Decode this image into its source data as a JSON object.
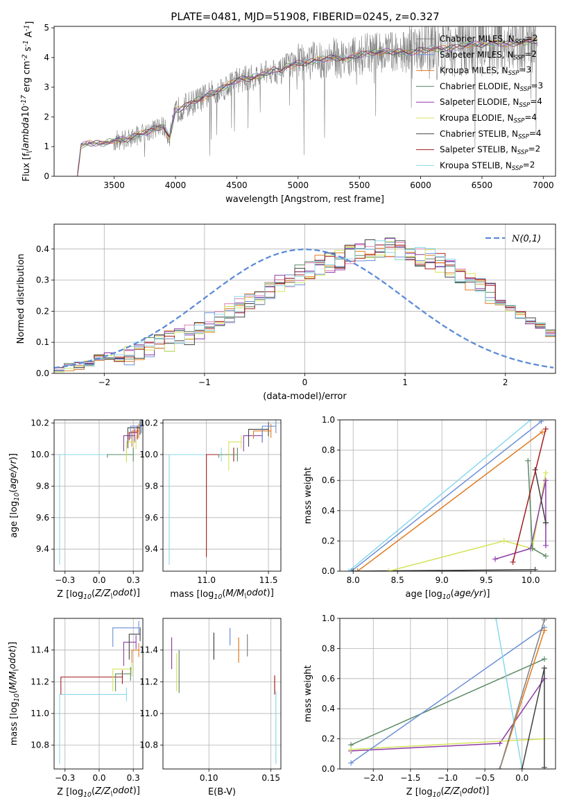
{
  "figure_title": "PLATE=0481, MJD=51908, FIBERID=0245, z=0.327",
  "series_styles": [
    {
      "name": "Chabrier MILES, N$_{SSP}$=2",
      "color": "#808080"
    },
    {
      "name": "Salpeter MILES, N$_{SSP}$=2",
      "color": "#6a8fd8"
    },
    {
      "name": "Kroupa MILES, N$_{SSP}$=3",
      "color": "#e07a1f"
    },
    {
      "name": "Chabrier ELODIE, N$_{SSP}$=3",
      "color": "#5a8a64"
    },
    {
      "name": "Salpeter ELODIE, N$_{SSP}$=4",
      "color": "#8e3aa8"
    },
    {
      "name": "Kroupa ELODIE, N$_{SSP}$=4",
      "color": "#d4e35a"
    },
    {
      "name": "Chabrier STELIB, N$_{SSP}$=4",
      "color": "#404040"
    },
    {
      "name": "Salpeter STELIB, N$_{SSP}$=2",
      "color": "#a31d1d"
    },
    {
      "name": "Kroupa STELIB, N$_{SSP}$=2",
      "color": "#88d8ec"
    }
  ],
  "chart_data": [
    {
      "id": "spectrum",
      "type": "line",
      "xlabel": "wavelength [Angstrom, rest frame]",
      "ylabel": "Flux [f$_\\lambda$10$^{-17}$ erg cm$^{-2}$ s$^{-1}$ A$^{-1}$]",
      "xlim": [
        3010,
        7100
      ],
      "ylim": [
        0,
        5.05
      ],
      "xticks": [
        3500,
        4000,
        4500,
        5000,
        5500,
        6000,
        6500,
        7000
      ],
      "yticks": [
        0,
        1,
        2,
        3,
        4,
        5
      ],
      "grid": false,
      "legend_position": "top-right",
      "legend": [
        "Chabrier MILES, N$_{SSP}$=2",
        "Salpeter MILES, N$_{SSP}$=2",
        "Kroupa MILES, N$_{SSP}$=3",
        "Chabrier ELODIE, N$_{SSP}$=3",
        "Salpeter ELODIE, N$_{SSP}$=4",
        "Kroupa ELODIE, N$_{SSP}$=4",
        "Chabrier STELIB, N$_{SSP}$=4",
        "Salpeter STELIB, N$_{SSP}$=2",
        "Kroupa STELIB, N$_{SSP}$=2"
      ],
      "data_series": {
        "name": "",
        "color": "#808080",
        "x_range": [
          3200,
          6950
        ]
      },
      "model_x": [
        3200,
        3230,
        3300,
        3400,
        3500,
        3600,
        3700,
        3800,
        3900,
        3950,
        4000,
        4100,
        4200,
        4300,
        4400,
        4500,
        4600,
        4700,
        4800,
        4860,
        4900,
        5000,
        5100,
        5200,
        5300,
        5400,
        5500,
        5600,
        5700,
        5800,
        5900,
        6000,
        6100,
        6200,
        6300,
        6400,
        6500,
        6600,
        6700,
        6800,
        6900,
        6950
      ],
      "model_y": [
        0.0,
        1.05,
        1.12,
        1.1,
        1.2,
        1.25,
        1.4,
        1.55,
        1.7,
        1.3,
        2.2,
        2.4,
        2.6,
        2.8,
        3.0,
        3.25,
        3.3,
        3.4,
        3.6,
        3.5,
        3.7,
        3.8,
        3.85,
        3.95,
        4.0,
        3.95,
        4.1,
        4.15,
        4.2,
        4.2,
        4.15,
        4.25,
        4.3,
        4.3,
        4.35,
        4.45,
        4.45,
        4.5,
        4.45,
        4.5,
        4.55,
        4.55
      ]
    },
    {
      "id": "residuals",
      "type": "line",
      "xlabel": "(data-model)/error",
      "ylabel": "Normed distribution",
      "xlim": [
        -2.5,
        2.5
      ],
      "ylim": [
        0,
        0.48
      ],
      "xticks": [
        -2,
        -1,
        0,
        1,
        2
      ],
      "yticks": [
        0.0,
        0.1,
        0.2,
        0.3,
        0.4
      ],
      "grid": true,
      "legend_position": "top-right",
      "legend": [
        "$\\mathcal{N}(0,1)$"
      ],
      "normal_curve": {
        "name": "$\\mathcal{N}(0,1)$",
        "color": "#5b8bd6",
        "mean": 0,
        "sigma": 1
      },
      "bin_edges_start": -2.5,
      "bin_width": 0.1,
      "histogram_shape": [
        0.015,
        0.02,
        0.025,
        0.035,
        0.05,
        0.055,
        0.05,
        0.06,
        0.07,
        0.08,
        0.09,
        0.1,
        0.11,
        0.12,
        0.14,
        0.16,
        0.17,
        0.19,
        0.21,
        0.23,
        0.25,
        0.26,
        0.28,
        0.3,
        0.31,
        0.33,
        0.34,
        0.35,
        0.36,
        0.37,
        0.38,
        0.39,
        0.4,
        0.4,
        0.39,
        0.38,
        0.37,
        0.36,
        0.35,
        0.33,
        0.31,
        0.29,
        0.27,
        0.25,
        0.23,
        0.21,
        0.19,
        0.17,
        0.15,
        0.13
      ]
    },
    {
      "id": "age-vs-metallicity",
      "type": "line",
      "xlabel": "Z [log$_{10}$($Z/Z_\\odot$)]",
      "ylabel": "age  [log$_{10}$($age/yr$)]",
      "xlim": [
        -0.33,
        0.32
      ],
      "ylim": [
        9.26,
        10.22
      ],
      "xticks": [
        -0.25,
        0.0,
        0.25
      ],
      "yticks": [
        9.4,
        9.6,
        9.8,
        10.0,
        10.2
      ],
      "grid": true,
      "steps": [
        {
          "series": 8,
          "x": [
            -0.29,
            0.2
          ],
          "y": [
            9.3,
            10.0
          ]
        },
        {
          "series": 3,
          "x": [
            0.06,
            0.25
          ],
          "y": [
            9.98,
            10.0
          ]
        },
        {
          "series": 2,
          "x": [
            0.24,
            0.29
          ],
          "y": [
            10.05,
            10.15
          ]
        },
        {
          "series": 7,
          "x": [
            0.22,
            0.28
          ],
          "y": [
            10.09,
            10.14
          ]
        },
        {
          "series": 4,
          "x": [
            0.18,
            0.26
          ],
          "y": [
            10.02,
            10.12
          ]
        },
        {
          "series": 5,
          "x": [
            0.2,
            0.27
          ],
          "y": [
            9.95,
            10.08
          ]
        },
        {
          "series": 6,
          "x": [
            0.21,
            0.3
          ],
          "y": [
            10.04,
            10.17
          ]
        },
        {
          "series": 1,
          "x": [
            0.23,
            0.31
          ],
          "y": [
            10.1,
            10.18
          ]
        }
      ]
    },
    {
      "id": "age-vs-mass",
      "type": "line",
      "xlabel": "mass [log$_{10}$($M/M_\\odot$)]",
      "ylabel": "",
      "xlim": [
        10.65,
        11.6
      ],
      "ylim": [
        9.26,
        10.22
      ],
      "xticks": [
        11.0,
        11.5
      ],
      "yticks": [
        9.4,
        9.6,
        9.8,
        10.0,
        10.2
      ],
      "grid": true,
      "steps": [
        {
          "series": 8,
          "x": [
            10.7,
            11.12
          ],
          "y": [
            9.3,
            10.0
          ]
        },
        {
          "series": 7,
          "x": [
            11.0,
            11.22
          ],
          "y": [
            9.35,
            10.0
          ]
        },
        {
          "series": 3,
          "x": [
            11.1,
            11.25
          ],
          "y": [
            9.98,
            10.0
          ]
        },
        {
          "series": 5,
          "x": [
            11.18,
            11.28
          ],
          "y": [
            9.9,
            10.08
          ]
        },
        {
          "series": 4,
          "x": [
            11.3,
            11.45
          ],
          "y": [
            10.02,
            10.12
          ]
        },
        {
          "series": 6,
          "x": [
            11.34,
            11.5
          ],
          "y": [
            10.05,
            10.16
          ]
        },
        {
          "series": 2,
          "x": [
            11.38,
            11.52
          ],
          "y": [
            10.1,
            10.15
          ]
        },
        {
          "series": 1,
          "x": [
            11.45,
            11.56
          ],
          "y": [
            10.08,
            10.18
          ]
        }
      ]
    },
    {
      "id": "mass-weight-vs-age",
      "type": "line",
      "xlabel": "age  [log$_{10}$($age/yr$)]",
      "ylabel": "mass weight",
      "xlim": [
        7.85,
        10.28
      ],
      "ylim": [
        0.0,
        1.0
      ],
      "xticks": [
        8.0,
        8.5,
        9.0,
        9.5,
        10.0
      ],
      "yticks": [
        0.0,
        0.2,
        0.4,
        0.6,
        0.8,
        1.0
      ],
      "grid": true,
      "series": [
        {
          "series": 8,
          "x": [
            7.95,
            10.0
          ],
          "y": [
            0.0,
            1.0
          ]
        },
        {
          "series": 1,
          "x": [
            7.98,
            10.12
          ],
          "y": [
            0.0,
            0.99
          ]
        },
        {
          "series": 2,
          "x": [
            8.05,
            10.13
          ],
          "y": [
            0.0,
            0.92
          ]
        },
        {
          "series": 6,
          "x": [
            8.0,
            10.05
          ],
          "y": [
            0.0,
            0.01
          ]
        },
        {
          "series": 5,
          "x": [
            8.4,
            9.7,
            10.02,
            10.17
          ],
          "y": [
            0.0,
            0.2,
            0.15,
            0.65
          ]
        },
        {
          "series": 4,
          "x": [
            9.6,
            10.0,
            10.17,
            10.17
          ],
          "y": [
            0.08,
            0.15,
            0.6,
            0.17
          ]
        },
        {
          "series": 3,
          "x": [
            9.97,
            10.02,
            10.17
          ],
          "y": [
            0.73,
            0.15,
            0.1
          ]
        },
        {
          "series": 6,
          "x": [
            10.05,
            10.17,
            10.17
          ],
          "y": [
            0.67,
            0.32,
            0.32
          ]
        },
        {
          "series": 7,
          "x": [
            9.8,
            10.17
          ],
          "y": [
            0.06,
            0.94
          ]
        }
      ]
    },
    {
      "id": "mass-vs-metallicity",
      "type": "line",
      "xlabel": "Z [log$_{10}$($Z/Z_\\odot$)]",
      "ylabel": "mass [log$_{10}$($M/M_\\odot$)]",
      "xlim": [
        -0.33,
        0.32
      ],
      "ylim": [
        10.65,
        11.6
      ],
      "xticks": [
        -0.25,
        0.0,
        0.25
      ],
      "yticks": [
        10.8,
        11.0,
        11.2,
        11.4
      ],
      "grid": true,
      "steps": [
        {
          "series": 8,
          "x": [
            -0.29,
            0.2
          ],
          "y": [
            10.68,
            11.12
          ]
        },
        {
          "series": 7,
          "x": [
            -0.28,
            0.17
          ],
          "y": [
            11.12,
            11.23
          ]
        },
        {
          "series": 5,
          "x": [
            0.1,
            0.24
          ],
          "y": [
            11.14,
            11.28
          ]
        },
        {
          "series": 3,
          "x": [
            0.12,
            0.23
          ],
          "y": [
            11.14,
            11.25
          ]
        },
        {
          "series": 4,
          "x": [
            0.18,
            0.27
          ],
          "y": [
            11.3,
            11.45
          ]
        },
        {
          "series": 2,
          "x": [
            0.24,
            0.29
          ],
          "y": [
            11.32,
            11.4
          ]
        },
        {
          "series": 6,
          "x": [
            0.22,
            0.3
          ],
          "y": [
            11.34,
            11.5
          ]
        },
        {
          "series": 1,
          "x": [
            0.1,
            0.29
          ],
          "y": [
            11.42,
            11.54
          ]
        }
      ]
    },
    {
      "id": "mass-vs-extinction",
      "type": "line",
      "xlabel": "E(B-V)",
      "ylabel": "",
      "xlim": [
        0.063,
        0.158
      ],
      "ylim": [
        10.65,
        11.6
      ],
      "xticks": [
        0.1,
        0.15
      ],
      "yticks": [
        10.8,
        11.0,
        11.2,
        11.4
      ],
      "grid": true,
      "segments": [
        {
          "series": 4,
          "x": 0.07,
          "y": [
            11.28,
            11.48
          ]
        },
        {
          "series": 5,
          "x": 0.074,
          "y": [
            11.14,
            11.38
          ]
        },
        {
          "series": 3,
          "x": 0.076,
          "y": [
            11.13,
            11.4
          ]
        },
        {
          "series": 6,
          "x": 0.104,
          "y": [
            11.34,
            11.51
          ]
        },
        {
          "series": 1,
          "x": 0.117,
          "y": [
            11.43,
            11.54
          ]
        },
        {
          "series": 2,
          "x": 0.124,
          "y": [
            11.32,
            11.48
          ]
        },
        {
          "series": 0,
          "x": 0.131,
          "y": [
            11.36,
            11.5
          ]
        },
        {
          "series": 7,
          "x": 0.153,
          "y": [
            11.12,
            11.24
          ]
        },
        {
          "series": 8,
          "x": 0.154,
          "y": [
            10.68,
            11.14
          ]
        }
      ]
    },
    {
      "id": "mass-weight-vs-metallicity",
      "type": "line",
      "xlabel": "Z [log$_{10}$($Z/Z_\\odot$)]",
      "ylabel": "mass weight",
      "xlim": [
        -2.45,
        0.45
      ],
      "ylim": [
        0.0,
        1.0
      ],
      "xticks": [
        -2.0,
        -1.5,
        -1.0,
        -0.5,
        0.0
      ],
      "yticks": [
        0.0,
        0.2,
        0.4,
        0.6,
        0.8,
        1.0
      ],
      "grid": true,
      "series": [
        {
          "series": 3,
          "x": [
            -2.3,
            0.3
          ],
          "y": [
            0.16,
            0.73
          ]
        },
        {
          "series": 4,
          "x": [
            -2.3,
            -0.3,
            0.3
          ],
          "y": [
            0.12,
            0.17,
            0.6
          ]
        },
        {
          "series": 5,
          "x": [
            -2.3,
            0.3
          ],
          "y": [
            0.13,
            0.2
          ]
        },
        {
          "series": 1,
          "x": [
            -2.3,
            0.3
          ],
          "y": [
            0.04,
            0.94
          ]
        },
        {
          "series": 8,
          "x": [
            -0.35,
            0.0
          ],
          "y": [
            1.0,
            0.0
          ]
        },
        {
          "series": 2,
          "x": [
            -0.3,
            0.3
          ],
          "y": [
            0.0,
            0.92
          ]
        },
        {
          "series": 0,
          "x": [
            -0.3,
            0.3
          ],
          "y": [
            0.0,
            0.99
          ]
        },
        {
          "series": 6,
          "x": [
            0.0,
            0.3,
            0.3
          ],
          "y": [
            0.0,
            0.67,
            0.01
          ]
        }
      ]
    }
  ]
}
